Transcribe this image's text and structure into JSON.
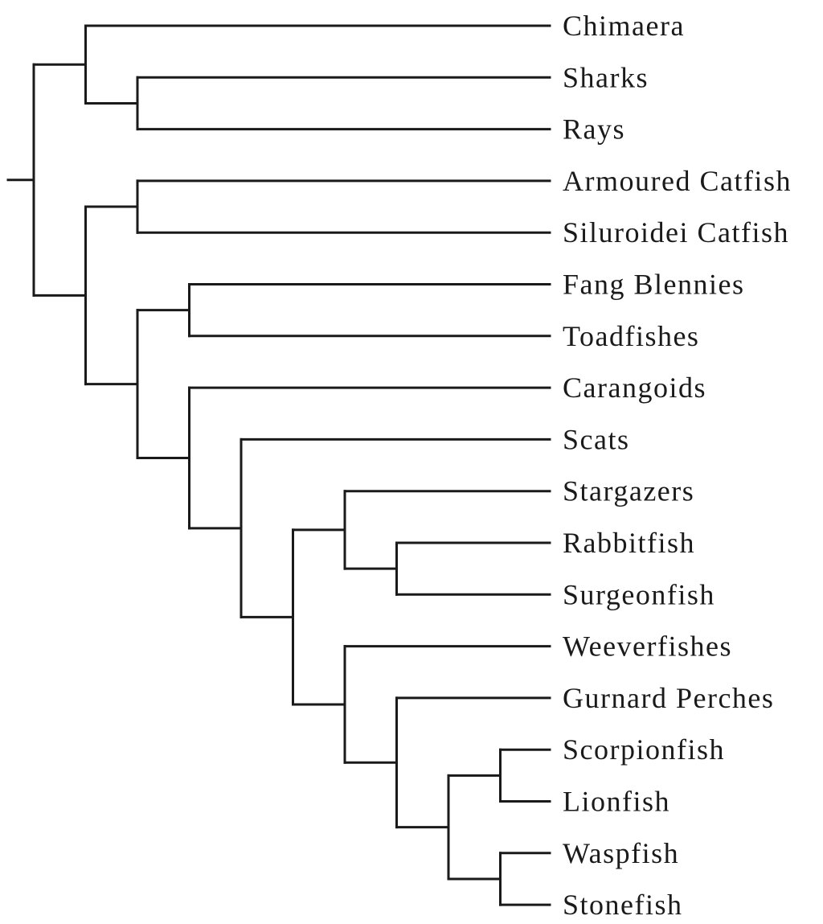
{
  "tree": {
    "leaves": [
      "Chimaera",
      "Sharks",
      "Rays",
      "Armoured Catfish",
      "Siluroidei Catfish",
      "Fang Blennies",
      "Toadfishes",
      "Carangoids",
      "Scats",
      "Stargazers",
      "Rabbitfish",
      "Surgeonfish",
      "Weeverfishes",
      "Gurnard Perches",
      "Scorpionfish",
      "Lionfish",
      "Waspfish",
      "Stonefish"
    ],
    "topology": [
      [
        0,
        [
          1,
          2
        ]
      ],
      [
        [
          3,
          4
        ],
        [
          [
            5,
            6
          ],
          [
            7,
            [
              8,
              [
                [
                  9,
                  [
                    10,
                    11
                  ]
                ],
                [
                  12,
                  [
                    13,
                    [
                      [
                        14,
                        15
                      ],
                      [
                        16,
                        17
                      ]
                    ]
                  ]
                ]
              ]
            ]
          ]
        ]
      ]
    ],
    "line_color": "#1a1a1a"
  }
}
